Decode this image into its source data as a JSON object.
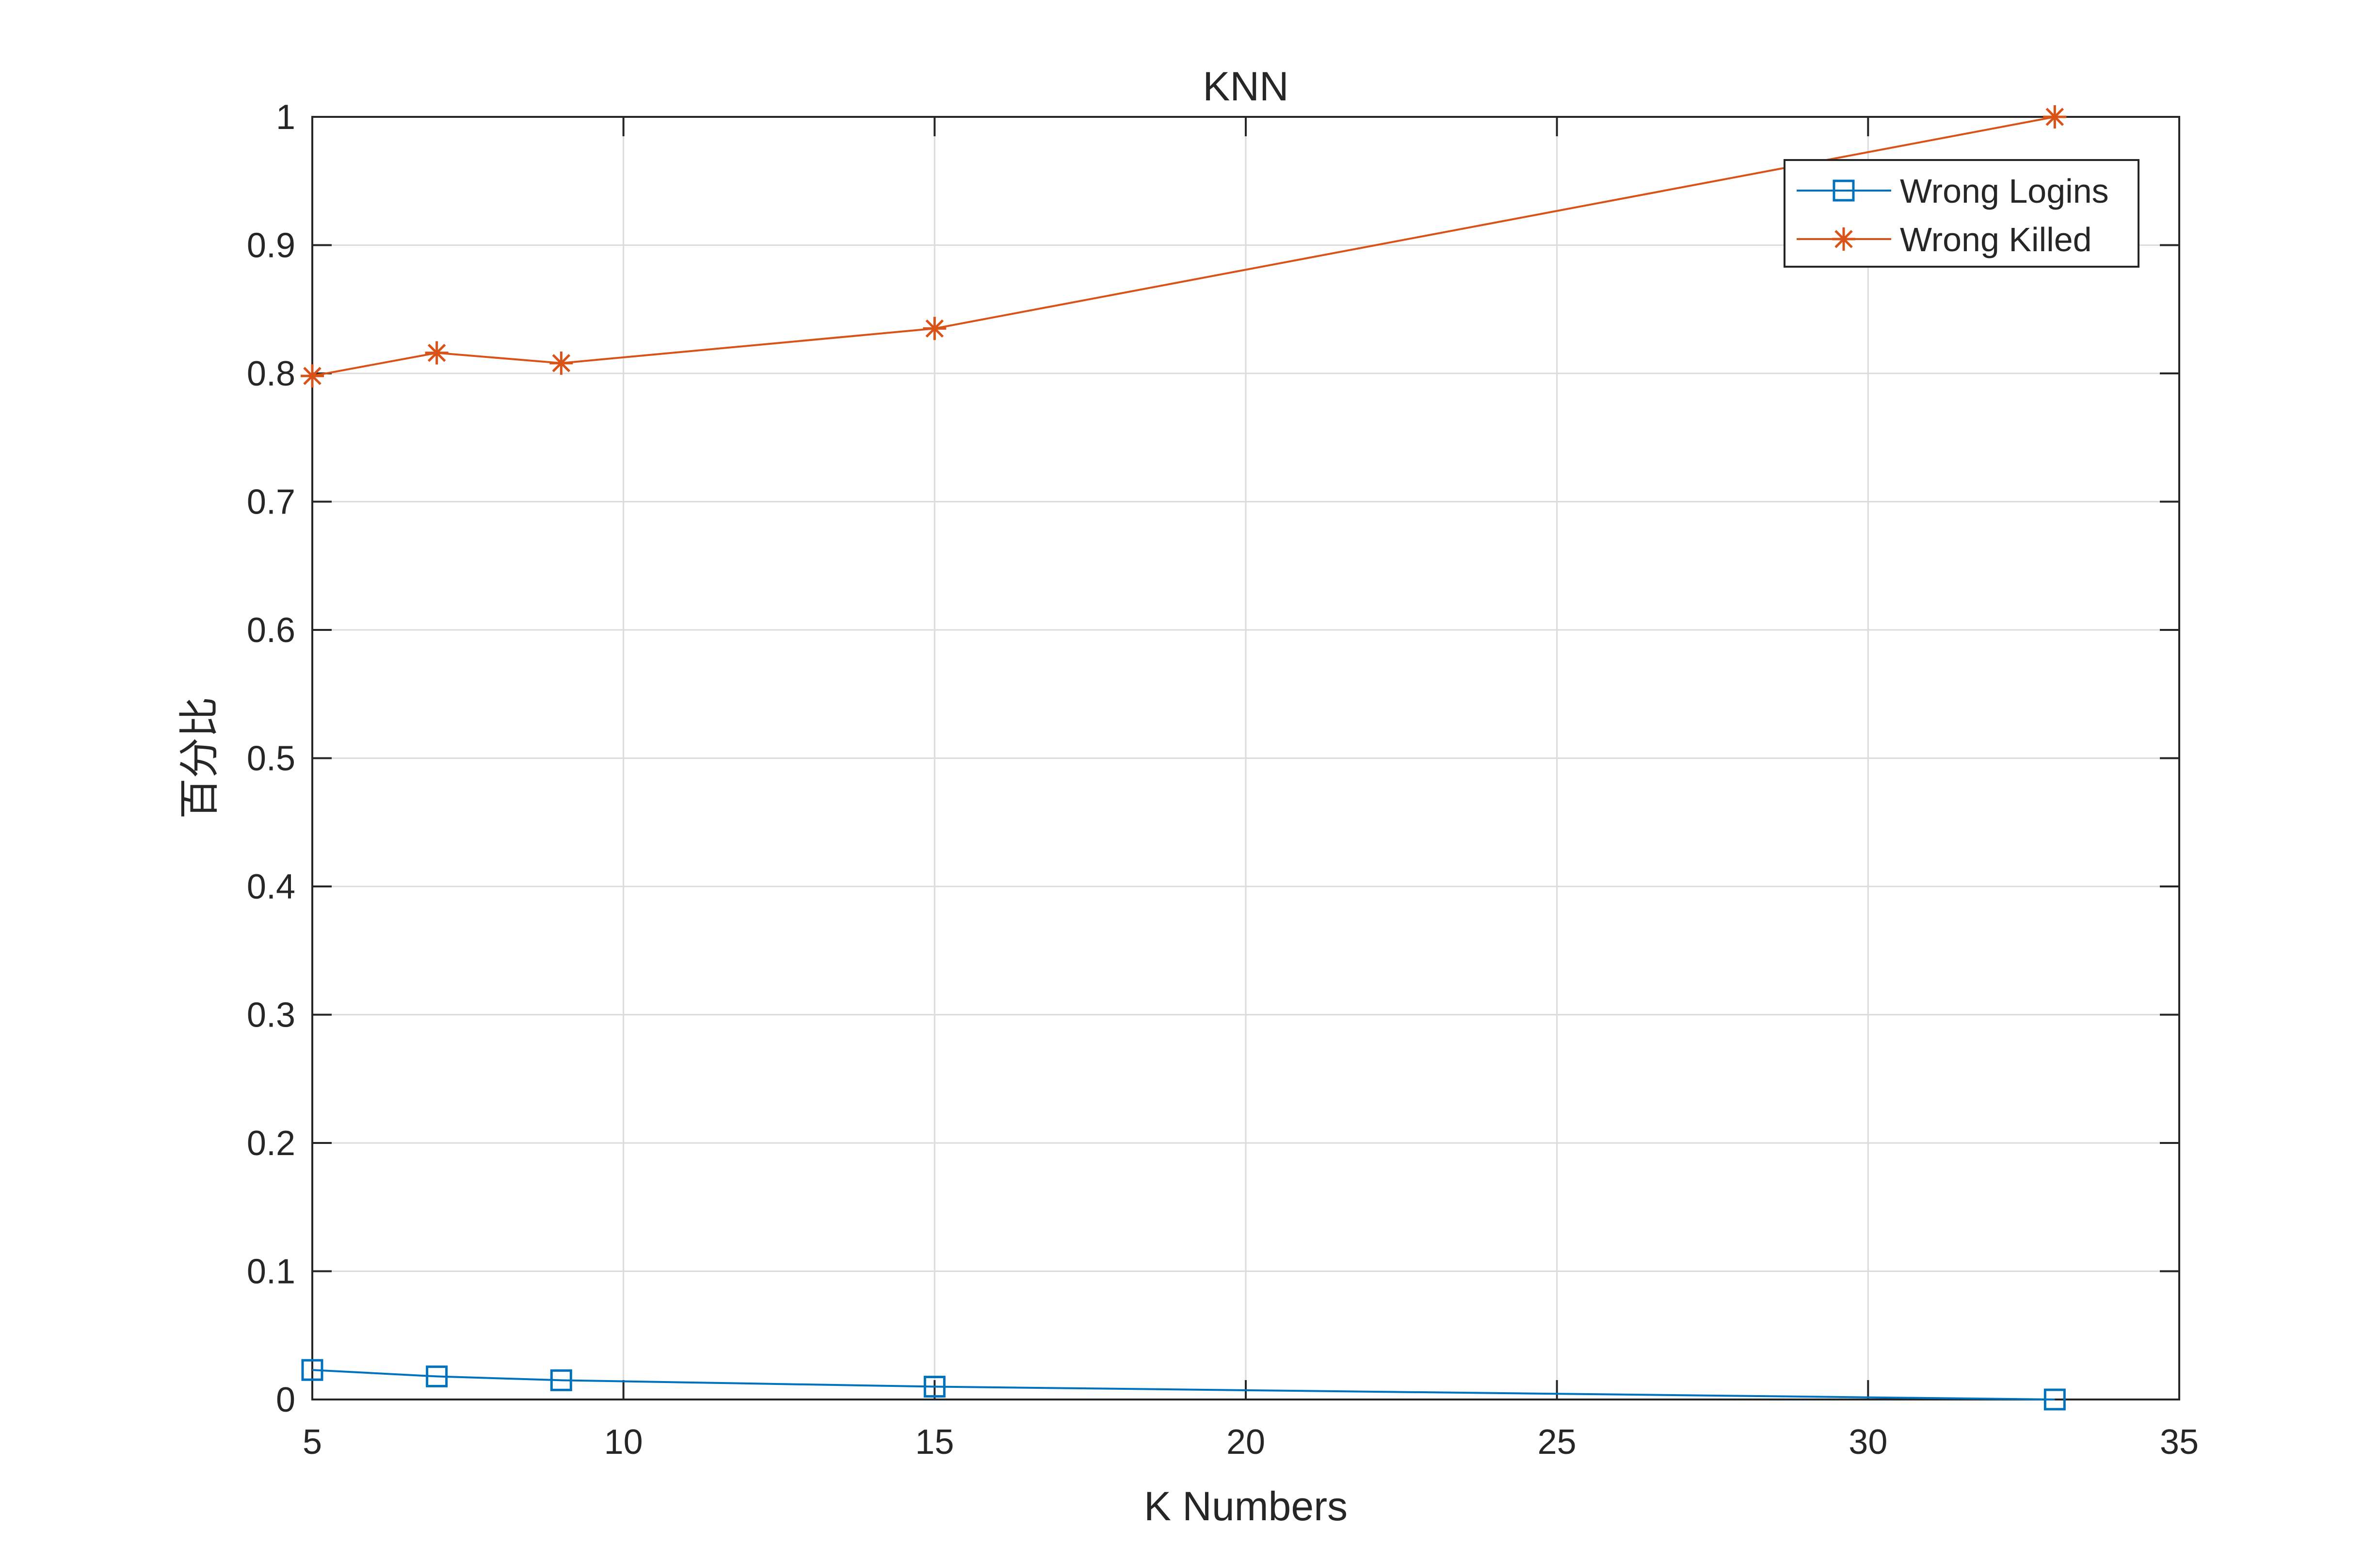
{
  "chart_data": {
    "type": "line",
    "title": "KNN",
    "xlabel": "K Numbers",
    "ylabel": "百分比",
    "xlim": [
      5,
      35
    ],
    "ylim": [
      0,
      1
    ],
    "xticks": [
      5,
      10,
      15,
      20,
      25,
      30,
      35
    ],
    "xtick_labels": [
      "5",
      "10",
      "15",
      "20",
      "25",
      "30",
      "35"
    ],
    "yticks": [
      0,
      0.1,
      0.2,
      0.3,
      0.4,
      0.5,
      0.6,
      0.7,
      0.8,
      0.9,
      1
    ],
    "ytick_labels": [
      "0",
      "0.1",
      "0.2",
      "0.3",
      "0.4",
      "0.5",
      "0.6",
      "0.7",
      "0.8",
      "0.9",
      "1"
    ],
    "grid": true,
    "legend_position": "top-right",
    "series": [
      {
        "name": "Wrong Logins",
        "marker": "square",
        "color": "#0072BD",
        "x": [
          5,
          7,
          9,
          15,
          33
        ],
        "y": [
          0.023,
          0.018,
          0.015,
          0.01,
          0.0
        ]
      },
      {
        "name": "Wrong Killed",
        "marker": "asterisk",
        "color": "#D95319",
        "x": [
          5,
          7,
          9,
          15,
          33
        ],
        "y": [
          0.798,
          0.816,
          0.808,
          0.835,
          1.0
        ]
      }
    ]
  }
}
